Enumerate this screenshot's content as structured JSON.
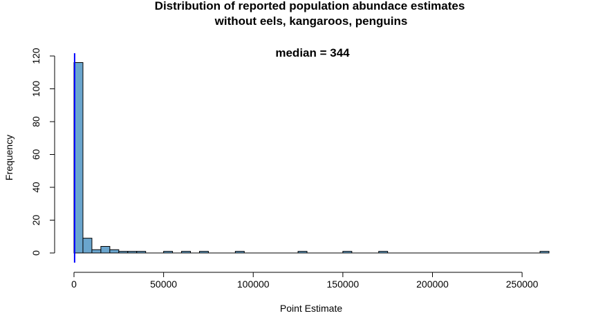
{
  "chart_data": {
    "type": "bar",
    "title_lines": [
      "Distribution of reported population abundace estimates",
      "without eels, kangaroos, penguins"
    ],
    "annotation": "median = 344",
    "xlabel": "Point Estimate",
    "ylabel": "Frequency",
    "x_ticks": [
      0,
      50000,
      100000,
      150000,
      200000,
      250000
    ],
    "x_tick_labels": [
      "0",
      "50000",
      "100000",
      "150000",
      "200000",
      "250000"
    ],
    "y_ticks": [
      0,
      20,
      40,
      60,
      80,
      100,
      120
    ],
    "y_tick_labels": [
      "0",
      "20",
      "40",
      "60",
      "80",
      "100",
      "120"
    ],
    "xlim": [
      0,
      265000
    ],
    "ylim": [
      0,
      120
    ],
    "bin_width": 5000,
    "bins": [
      {
        "start": 0,
        "count": 116
      },
      {
        "start": 5000,
        "count": 9
      },
      {
        "start": 10000,
        "count": 2
      },
      {
        "start": 15000,
        "count": 4
      },
      {
        "start": 20000,
        "count": 2
      },
      {
        "start": 25000,
        "count": 1
      },
      {
        "start": 30000,
        "count": 1
      },
      {
        "start": 35000,
        "count": 1
      },
      {
        "start": 50000,
        "count": 1
      },
      {
        "start": 60000,
        "count": 1
      },
      {
        "start": 70000,
        "count": 1
      },
      {
        "start": 90000,
        "count": 1
      },
      {
        "start": 125000,
        "count": 1
      },
      {
        "start": 150000,
        "count": 1
      },
      {
        "start": 170000,
        "count": 1
      },
      {
        "start": 260000,
        "count": 1
      }
    ],
    "median_line_x": 344,
    "colors": {
      "bar_fill": "#6aa5cd",
      "bar_stroke": "#000000",
      "median_line": "#0000ff"
    },
    "grid": false
  }
}
